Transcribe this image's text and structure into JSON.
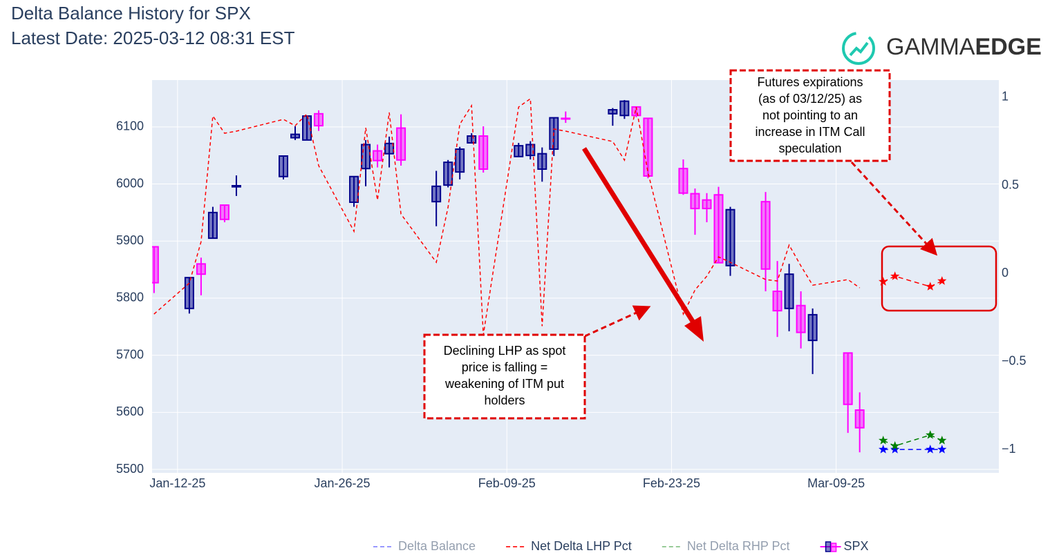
{
  "chart_data": {
    "type": "candlestick",
    "title": [
      "Delta Balance History for SPX",
      "Latest Date: 2025-03-12 08:31 EST"
    ],
    "logo": [
      "GAMMA",
      "EDGE"
    ],
    "candle_name": "SPX",
    "increasing_color": "#00008b",
    "decreasing_color": "#ff00ff",
    "x": [
      "2025-01-10",
      "2025-01-13",
      "2025-01-14",
      "2025-01-15",
      "2025-01-16",
      "2025-01-17",
      "2025-01-21",
      "2025-01-22",
      "2025-01-23",
      "2025-01-24",
      "2025-01-27",
      "2025-01-28",
      "2025-01-29",
      "2025-01-30",
      "2025-01-31",
      "2025-02-03",
      "2025-02-04",
      "2025-02-05",
      "2025-02-06",
      "2025-02-07",
      "2025-02-10",
      "2025-02-11",
      "2025-02-12",
      "2025-02-13",
      "2025-02-14",
      "2025-02-18",
      "2025-02-19",
      "2025-02-20",
      "2025-02-21",
      "2025-02-24",
      "2025-02-25",
      "2025-02-26",
      "2025-02-27",
      "2025-02-28",
      "2025-03-03",
      "2025-03-04",
      "2025-03-05",
      "2025-03-06",
      "2025-03-07",
      "2025-03-10",
      "2025-03-11"
    ],
    "open": [
      5890,
      5782,
      5860,
      5905,
      5963,
      5995,
      6013,
      6081,
      6077,
      6123,
      5968,
      6027,
      6058,
      6053,
      6098,
      5969,
      5998,
      6021,
      6072,
      6084,
      6048,
      6050,
      6026,
      6061,
      6115,
      6123,
      6120,
      6135,
      6115,
      6027,
      5983,
      5972,
      5981,
      5857,
      5969,
      5812,
      5782,
      5787,
      5726,
      5704,
      5604
    ],
    "high": [
      5891,
      5836,
      5871,
      5960,
      5963,
      6015,
      6050,
      6101,
      6119,
      6129,
      6013,
      6077,
      6069,
      6083,
      6122,
      6023,
      6042,
      6065,
      6089,
      6101,
      6072,
      6075,
      6064,
      6116,
      6127,
      6133,
      6147,
      6135,
      6115,
      6043,
      5992,
      5984,
      5995,
      5960,
      5986,
      5865,
      5860,
      5812,
      5782,
      5704,
      5635
    ],
    "low": [
      5809,
      5773,
      5805,
      5905,
      5933,
      5979,
      6008,
      6077,
      6077,
      6093,
      5960,
      5996,
      6029,
      6029,
      6032,
      5926,
      5994,
      6008,
      6072,
      6020,
      6048,
      6043,
      6004,
      6049,
      6107,
      6102,
      6114,
      6117,
      6010,
      5981,
      5911,
      5933,
      5862,
      5839,
      5812,
      5732,
      5742,
      5712,
      5667,
      5564,
      5530
    ],
    "close": [
      5827,
      5836,
      5842,
      5950,
      5938,
      5997,
      6049,
      6087,
      6119,
      6102,
      6013,
      6069,
      6041,
      6071,
      6042,
      5996,
      6038,
      6061,
      6084,
      6026,
      6067,
      6069,
      6053,
      6116,
      6114,
      6130,
      6145,
      6120,
      6014,
      5984,
      5957,
      5957,
      5862,
      5955,
      5851,
      5778,
      5842,
      5740,
      5771,
      5614,
      5573
    ],
    "future_x": [
      "2025-03-13",
      "2025-03-14",
      "2025-03-17",
      "2025-03-18"
    ],
    "series": [
      {
        "name": "Delta Balance",
        "color": "#0000ff",
        "axis": "y2",
        "visible": false,
        "future_values": [
          -1,
          -1,
          -1,
          -1
        ]
      },
      {
        "name": "Net Delta LHP Pct",
        "color": "#ff0000",
        "axis": "y2",
        "visible": true,
        "values": [
          -0.231,
          -0.055,
          0.18,
          0.894,
          0.796,
          0.808,
          0.875,
          0.839,
          0.906,
          0.612,
          0.239,
          0.827,
          0.416,
          0.914,
          0.337,
          0.063,
          0.376,
          0.847,
          0.953,
          -0.35,
          0.945,
          0.992,
          -0.3,
          0.82,
          0.808,
          0.749,
          0.643,
          0.945,
          0.573,
          -0.231,
          -0.094,
          -0.016,
          0.094,
          0.063,
          -0.035,
          -0.043,
          0.161,
          0.043,
          -0.067,
          -0.035,
          -0.082
        ],
        "future_values": [
          -0.047,
          -0.016,
          -0.075,
          -0.043
        ]
      },
      {
        "name": "Net Delta RHP Pct",
        "color": "#008000",
        "axis": "y2",
        "visible": false,
        "future_values": [
          -0.949,
          -0.98,
          -0.918,
          -0.949
        ]
      }
    ],
    "xlim": [
      "2025-01-09T20:00",
      "2025-03-22T20:00"
    ],
    "xticks": [
      {
        "value": "2025-01-12",
        "label": "Jan-12-25"
      },
      {
        "value": "2025-01-26",
        "label": "Jan-26-25"
      },
      {
        "value": "2025-02-09",
        "label": "Feb-09-25"
      },
      {
        "value": "2025-02-23",
        "label": "Feb-23-25"
      },
      {
        "value": "2025-03-09",
        "label": "Mar-09-25"
      }
    ],
    "ylim": [
      5494,
      6182
    ],
    "yticks": [
      5500,
      5600,
      5700,
      5800,
      5900,
      6000,
      6100
    ],
    "y2lim": [
      -1.133,
      1.098
    ],
    "y2ticks": [
      {
        "value": -1,
        "label": "−1"
      },
      {
        "value": -0.5,
        "label": "−0.5"
      },
      0,
      0.5,
      1
    ],
    "grid": true,
    "annotations": [
      [
        "Declining LHP as spot",
        "price is falling =",
        "weakening of ITM put",
        "holders"
      ],
      [
        "Futures expirations",
        "(as of 03/12/25) as",
        "not pointing to an",
        "increase in ITM Call",
        "speculation"
      ]
    ]
  }
}
